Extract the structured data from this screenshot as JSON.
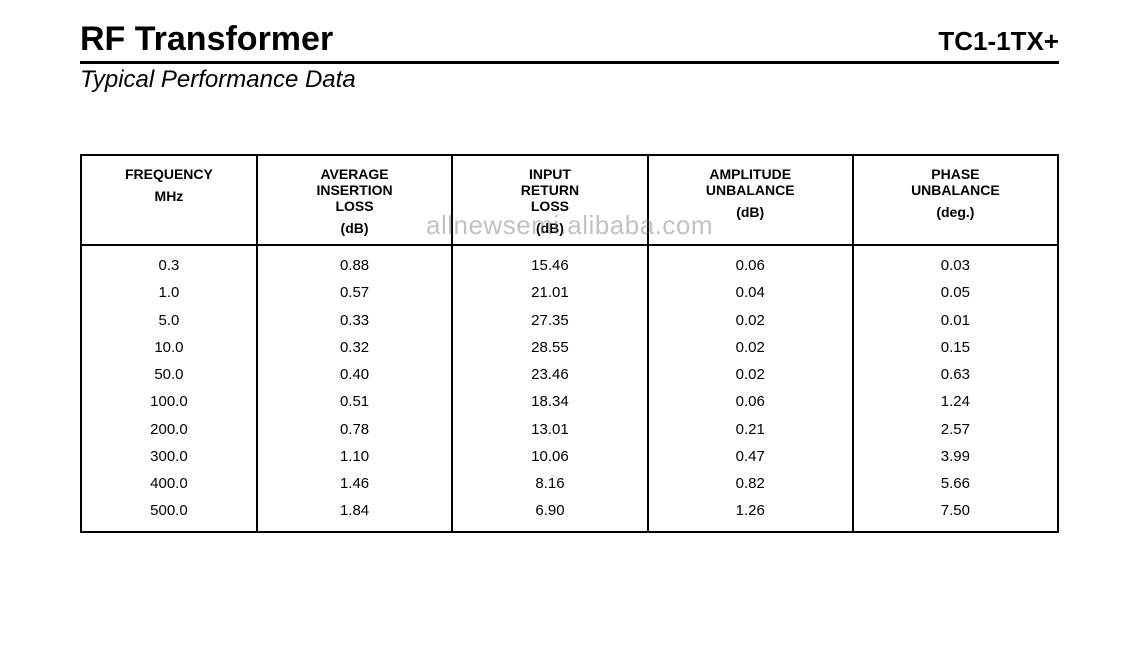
{
  "header": {
    "title": "RF Transformer",
    "part_number": "TC1-1TX+",
    "subtitle": "Typical Performance Data"
  },
  "watermark": "allnewsemi.alibaba.com",
  "table": {
    "columns": [
      {
        "main": "FREQUENCY",
        "unit": "MHz"
      },
      {
        "main": "AVERAGE\nINSERTION\nLOSS",
        "unit": "(dB)"
      },
      {
        "main": "INPUT\nRETURN\nLOSS",
        "unit": "(dB)"
      },
      {
        "main": "AMPLITUDE\nUNBALANCE",
        "unit": "(dB)"
      },
      {
        "main": "PHASE\nUNBALANCE",
        "unit": "(deg.)"
      }
    ],
    "rows": [
      [
        "0.3",
        "0.88",
        "15.46",
        "0.06",
        "0.03"
      ],
      [
        "1.0",
        "0.57",
        "21.01",
        "0.04",
        "0.05"
      ],
      [
        "5.0",
        "0.33",
        "27.35",
        "0.02",
        "0.01"
      ],
      [
        "10.0",
        "0.32",
        "28.55",
        "0.02",
        "0.15"
      ],
      [
        "50.0",
        "0.40",
        "23.46",
        "0.02",
        "0.63"
      ],
      [
        "100.0",
        "0.51",
        "18.34",
        "0.06",
        "1.24"
      ],
      [
        "200.0",
        "0.78",
        "13.01",
        "0.21",
        "2.57"
      ],
      [
        "300.0",
        "1.10",
        "10.06",
        "0.47",
        "3.99"
      ],
      [
        "400.0",
        "1.46",
        "8.16",
        "0.82",
        "5.66"
      ],
      [
        "500.0",
        "1.84",
        "6.90",
        "1.26",
        "7.50"
      ]
    ],
    "column_widths_pct": [
      18,
      20,
      20,
      21,
      21
    ],
    "border_color": "#000000",
    "text_color": "#000000",
    "background_color": "#ffffff",
    "header_fontsize": 14,
    "body_fontsize": 15
  }
}
